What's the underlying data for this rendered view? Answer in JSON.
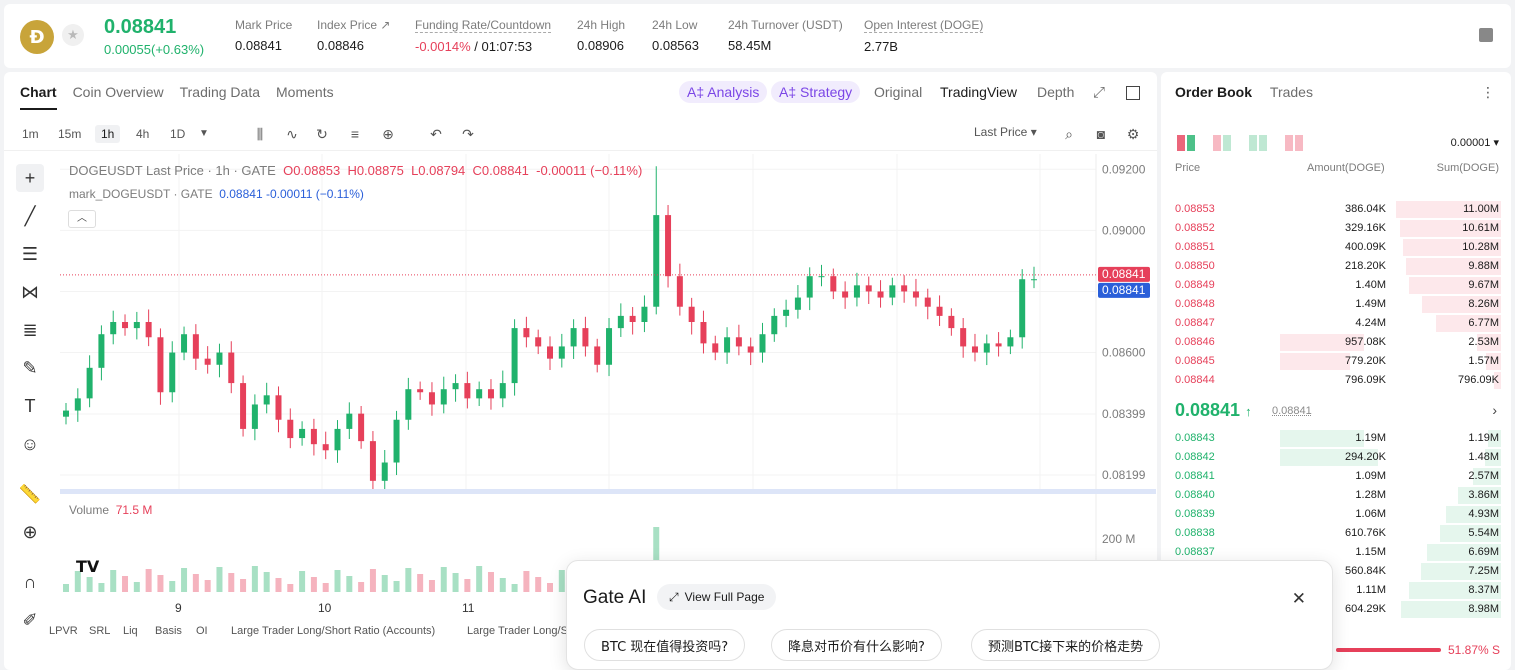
{
  "ticker": {
    "coin_icon": "doge-coin-icon",
    "last_price": "0.08841",
    "change": "0.00055(+0.63%)",
    "stats": [
      {
        "label": "Mark Price",
        "value": "0.08841"
      },
      {
        "label": "Index Price ↗",
        "value": "0.08846"
      },
      {
        "label": "Funding Rate/Countdown",
        "value_red": "-0.0014%",
        "value": " / 01:07:53"
      },
      {
        "label": "24h High",
        "value": "0.08906"
      },
      {
        "label": "24h Low",
        "value": "0.08563"
      },
      {
        "label": "24h Turnover (USDT)",
        "value": "58.45M"
      },
      {
        "label": "Open Interest (DOGE)",
        "value": "2.77B"
      }
    ]
  },
  "chart_tabs": [
    "Chart",
    "Coin Overview",
    "Trading Data",
    "Moments"
  ],
  "ai_tabs": {
    "analysis": "A‡ Analysis",
    "strategy": "A‡ Strategy"
  },
  "view_tabs": {
    "original": "Original",
    "tradingview": "TradingView",
    "depth": "Depth"
  },
  "timeframes": [
    "1m",
    "15m",
    "1h",
    "4h",
    "1D"
  ],
  "price_source": "Last Price",
  "legend": {
    "symbol": "DOGEUSDT Last Price · 1h · GATE",
    "o": "O0.08853",
    "h": "H0.08875",
    "l": "L0.08794",
    "c": "C0.08841",
    "chg": "-0.00011 (−0.11%)",
    "mark_symbol": "mark_DOGEUSDT · GATE",
    "mark_value": "0.08841 -0.00011 (−0.11%)"
  },
  "volume_label": "Volume",
  "volume_value": "71.5 M",
  "chart_data": {
    "type": "candlestick",
    "y_ticks": [
      "0.09200",
      "0.09000",
      "0.08800",
      "0.08600",
      "0.08399",
      "0.08199"
    ],
    "volume_ticks": [
      "200 M"
    ],
    "x_ticks": [
      "9",
      "10",
      "11"
    ],
    "price_tags": [
      "0.08841",
      "0.08841"
    ],
    "ylim": [
      0.0815,
      0.0925
    ]
  },
  "indicators": [
    "LPVR",
    "SRL",
    "Liq",
    "Basis",
    "OI",
    "Large Trader Long/Short Ratio (Accounts)",
    "Large Trader Long/Sh"
  ],
  "order_book": {
    "tabs": [
      "Order Book",
      "Trades"
    ],
    "precision": "0.00001",
    "headers": [
      "Price",
      "Amount(DOGE)",
      "Sum(DOGE)"
    ],
    "asks": [
      {
        "price": "0.08853",
        "amount": "386.04K",
        "sum": "11.00M",
        "depth": 1.0,
        "amt_rel": 0
      },
      {
        "price": "0.08852",
        "amount": "329.16K",
        "sum": "10.61M",
        "depth": 0.96,
        "amt_rel": 0
      },
      {
        "price": "0.08851",
        "amount": "400.09K",
        "sum": "10.28M",
        "depth": 0.93,
        "amt_rel": 0
      },
      {
        "price": "0.08850",
        "amount": "218.20K",
        "sum": "9.88M",
        "depth": 0.9,
        "amt_rel": 0
      },
      {
        "price": "0.08849",
        "amount": "1.40M",
        "sum": "9.67M",
        "depth": 0.88,
        "amt_rel": 0
      },
      {
        "price": "0.08848",
        "amount": "1.49M",
        "sum": "8.26M",
        "depth": 0.75,
        "amt_rel": 0
      },
      {
        "price": "0.08847",
        "amount": "4.24M",
        "sum": "6.77M",
        "depth": 0.62,
        "amt_rel": 0
      },
      {
        "price": "0.08846",
        "amount": "957.08K",
        "sum": "2.53M",
        "depth": 0.23,
        "amt_rel": 0.6
      },
      {
        "price": "0.08845",
        "amount": "779.20K",
        "sum": "1.57M",
        "depth": 0.14,
        "amt_rel": 0.5
      },
      {
        "price": "0.08844",
        "amount": "796.09K",
        "sum": "796.09K",
        "depth": 0.07,
        "amt_rel": 0
      }
    ],
    "mid_price": "0.08841",
    "mid_arrow": "↑",
    "mark_price": "0.08841",
    "bids": [
      {
        "price": "0.08843",
        "amount": "1.19M",
        "sum": "1.19M",
        "depth": 0.12,
        "amt_rel": 0.6
      },
      {
        "price": "0.08842",
        "amount": "294.20K",
        "sum": "1.48M",
        "depth": 0.15,
        "amt_rel": 0.7
      },
      {
        "price": "0.08841",
        "amount": "1.09M",
        "sum": "2.57M",
        "depth": 0.27,
        "amt_rel": 0
      },
      {
        "price": "0.08840",
        "amount": "1.28M",
        "sum": "3.86M",
        "depth": 0.41,
        "amt_rel": 0
      },
      {
        "price": "0.08839",
        "amount": "1.06M",
        "sum": "4.93M",
        "depth": 0.52,
        "amt_rel": 0
      },
      {
        "price": "0.08838",
        "amount": "610.76K",
        "sum": "5.54M",
        "depth": 0.58,
        "amt_rel": 0
      },
      {
        "price": "0.08837",
        "amount": "1.15M",
        "sum": "6.69M",
        "depth": 0.7,
        "amt_rel": 0
      },
      {
        "price": "",
        "amount": "560.84K",
        "sum": "7.25M",
        "depth": 0.76,
        "amt_rel": 0
      },
      {
        "price": "",
        "amount": "1.11M",
        "sum": "8.37M",
        "depth": 0.88,
        "amt_rel": 0
      },
      {
        "price": "",
        "amount": "604.29K",
        "sum": "8.98M",
        "depth": 0.95,
        "amt_rel": 0
      }
    ],
    "long_short": "51.87% S"
  },
  "gate_ai": {
    "title": "Gate AI",
    "view_full": "View Full Page",
    "questions": [
      "BTC 现在值得投资吗?",
      "降息对币价有什么影响?",
      "预测BTC接下来的价格走势"
    ]
  }
}
